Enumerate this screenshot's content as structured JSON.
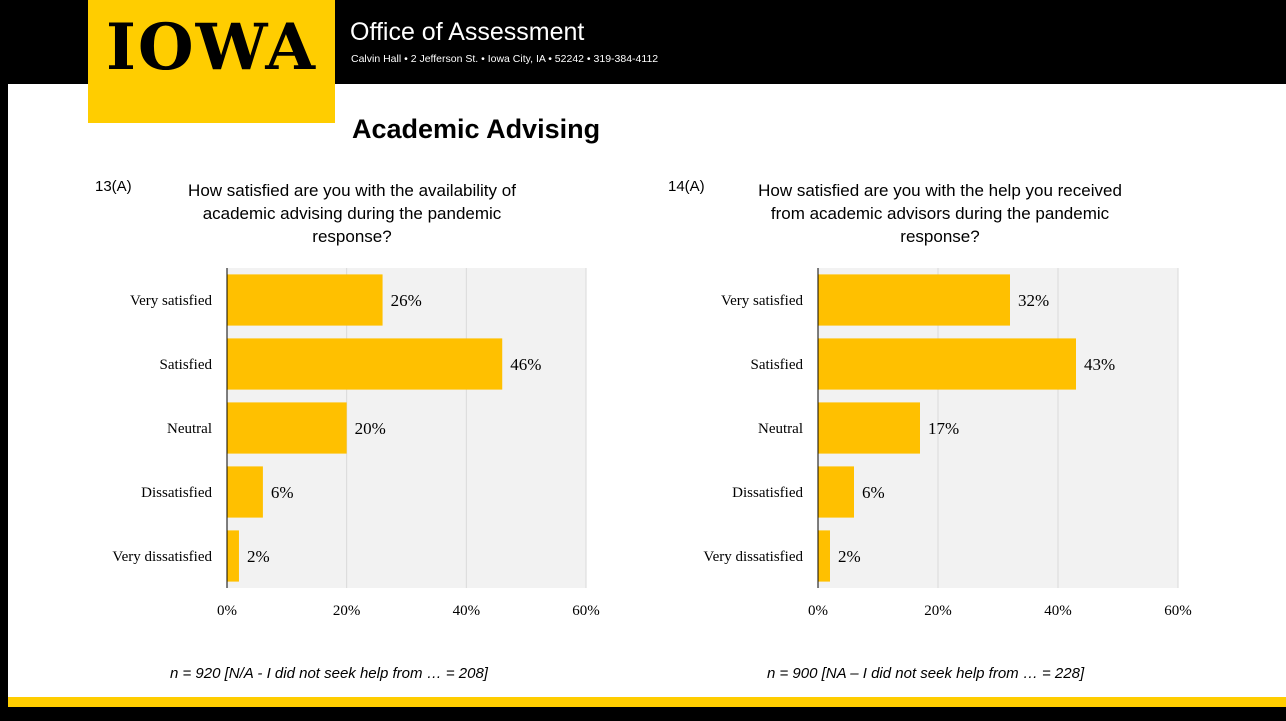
{
  "header": {
    "logo_text": "IOWA",
    "office_title": "Office of Assessment",
    "office_address": "Calvin Hall • 2 Jefferson St. • Iowa City, IA • 52242 • 319-384-4112"
  },
  "page_title": "Academic Advising",
  "colors": {
    "bar": "#FFC000",
    "brand_gold": "#FFCD00",
    "plot_bg": "#F2F2F2"
  },
  "questions": [
    {
      "number": "13(A)",
      "text_lines": [
        "How satisfied are you with the availability of",
        "academic advising during the pandemic",
        "response?"
      ]
    },
    {
      "number": "14(A)",
      "text_lines": [
        "How satisfied are you with the help you received",
        "from academic advisors during the pandemic",
        "response?"
      ]
    }
  ],
  "footnotes": [
    "n = 920  [N/A - I did not seek help from … = 208]",
    "n = 900  [NA – I did not seek help from … = 228]"
  ],
  "chart_data": [
    {
      "type": "bar",
      "orientation": "horizontal",
      "categories": [
        "Very satisfied",
        "Satisfied",
        "Neutral",
        "Dissatisfied",
        "Very dissatisfied"
      ],
      "values": [
        26,
        46,
        20,
        6,
        2
      ],
      "value_labels": [
        "26%",
        "46%",
        "20%",
        "6%",
        "2%"
      ],
      "xlim": [
        0,
        60
      ],
      "xticks": [
        "0%",
        "20%",
        "40%",
        "60%"
      ],
      "xtick_values": [
        0,
        20,
        40,
        60
      ],
      "grid": true
    },
    {
      "type": "bar",
      "orientation": "horizontal",
      "categories": [
        "Very satisfied",
        "Satisfied",
        "Neutral",
        "Dissatisfied",
        "Very dissatisfied"
      ],
      "values": [
        32,
        43,
        17,
        6,
        2
      ],
      "value_labels": [
        "32%",
        "43%",
        "17%",
        "6%",
        "2%"
      ],
      "xlim": [
        0,
        60
      ],
      "xticks": [
        "0%",
        "20%",
        "40%",
        "60%"
      ],
      "xtick_values": [
        0,
        20,
        40,
        60
      ],
      "grid": true
    }
  ]
}
